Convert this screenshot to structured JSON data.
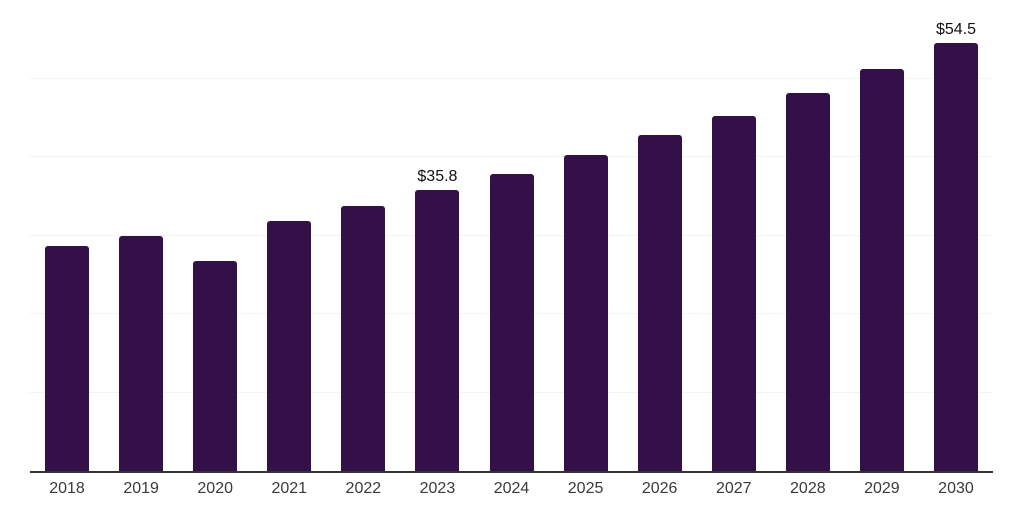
{
  "chart_data": {
    "type": "bar",
    "title": "",
    "xlabel": "",
    "ylabel": "",
    "categories": [
      "2018",
      "2019",
      "2020",
      "2021",
      "2022",
      "2023",
      "2024",
      "2025",
      "2026",
      "2027",
      "2028",
      "2029",
      "2030"
    ],
    "values": [
      28.7,
      30.0,
      26.8,
      31.9,
      33.7,
      35.8,
      37.9,
      40.2,
      42.8,
      45.2,
      48.2,
      51.2,
      54.5
    ],
    "value_labels": [
      "",
      "",
      "",
      "",
      "",
      "$35.8",
      "",
      "",
      "",
      "",
      "",
      "",
      "$54.5"
    ],
    "ylim": [
      0,
      60
    ],
    "gridline_step": 10,
    "grid": "horizontal-only",
    "legend_position": "none",
    "colors": {
      "bar_fill": "#341049",
      "axis_line": "#333333",
      "gridline": "#f3f3f5",
      "gridline_top": "#e9e9ec",
      "tick_label": "#3a3a3a",
      "data_label": "#111111",
      "background": "#ffffff"
    }
  }
}
